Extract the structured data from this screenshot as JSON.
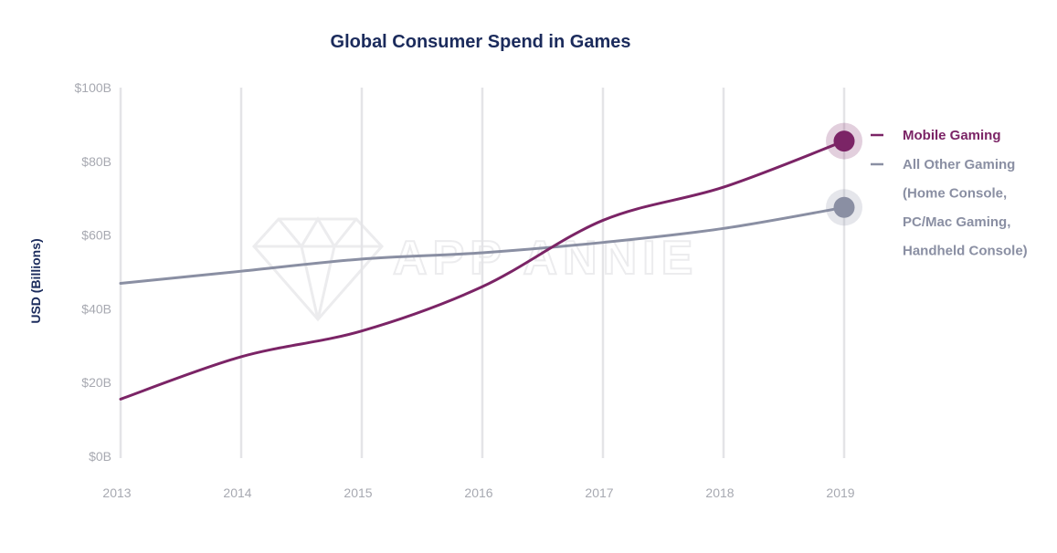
{
  "chart_data": {
    "type": "line",
    "title": "Global Consumer Spend in Games",
    "xlabel": "",
    "ylabel": "USD (Billions)",
    "x": [
      "2013",
      "2014",
      "2015",
      "2016",
      "2017",
      "2018",
      "2019"
    ],
    "y_ticks": [
      "$0B",
      "$20B",
      "$40B",
      "$60B",
      "$80B",
      "$100B"
    ],
    "ylim": [
      0,
      100
    ],
    "grid": "vertical",
    "watermark": "APP ANNIE",
    "series": [
      {
        "name": "Mobile Gaming",
        "color": "#7b2466",
        "values": [
          15.5,
          27,
          34,
          46,
          64,
          73,
          85.5
        ]
      },
      {
        "name": "All Other Gaming",
        "color": "#8a8fa3",
        "values": [
          46.9,
          50.2,
          53.5,
          55.2,
          58,
          61.8,
          67.5
        ]
      }
    ],
    "legend": {
      "position": "right",
      "items": [
        {
          "label_lines": [
            "Mobile Gaming"
          ],
          "color": "#7b2466"
        },
        {
          "label_lines": [
            "All Other Gaming",
            "(Home Console,",
            "PC/Mac Gaming,",
            "Handheld Console)"
          ],
          "color": "#8a8fa3"
        }
      ]
    }
  }
}
